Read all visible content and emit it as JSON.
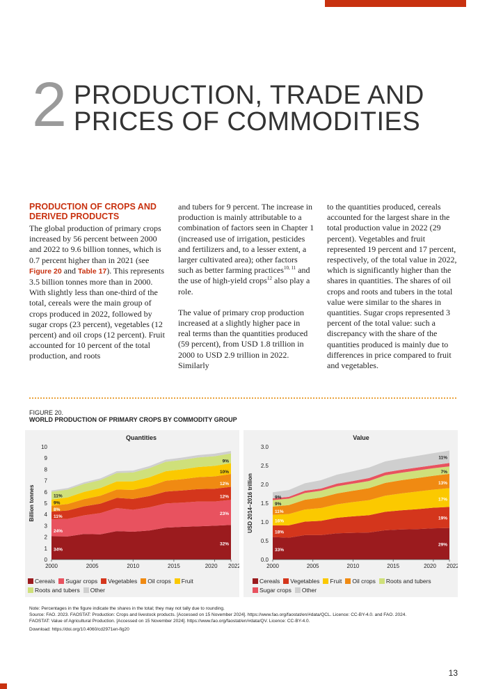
{
  "chapter": {
    "number": "2",
    "title_line1": "PRODUCTION, TRADE AND",
    "title_line2": "PRICES OF COMMODITIES"
  },
  "section": {
    "heading": "PRODUCTION OF CROPS AND DERIVED PRODUCTS"
  },
  "body": {
    "col1_p1_a": "The global production of primary crops increased by 56 percent between 2000 and 2022 to 9.6 billion tonnes, which is 0.7 percent higher than in 2021 (see ",
    "ref_figure": "Figure 20",
    "and_word": " and ",
    "ref_table": "Table 17",
    "col1_p1_b": "). This represents 3.5 billion tonnes more than in 2000. With slightly less than one-third of the total, cereals were the main group of crops produced in 2022, followed by sugar crops (23 percent), vegetables (12 percent) and oil crops (12 percent). Fruit accounted for 10 percent of the total production, and roots",
    "col2_p1_a": "and tubers for 9 percent. The increase in production is mainly attributable to a combination of factors seen in Chapter 1 (increased use of irrigation, pesticides and fertilizers and, to a lesser extent, a larger cultivated area); other factors such as better farming practices",
    "col2_sup1": "10, 11",
    "col2_p1_b": " and the use of high-yield crops",
    "col2_sup2": "12",
    "col2_p1_c": " also play a role.",
    "col2_p2": "The value of primary crop production increased at a slightly higher pace in real terms than the quantities produced (59 percent), from USD 1.8 trillion in 2000 to USD 2.9 trillion in 2022. Similarly",
    "col3_p1": "to the quantities produced, cereals accounted for the largest share in the total production value in 2022 (29 percent). Vegetables and fruit represented 19 percent and 17 percent, respectively, of the total value in 2022, which is significantly higher than the shares in quantities. The shares of oil crops and roots and tubers in the total value were similar to the shares in quantities. Sugar crops represented 3 percent of the total value: such a discrepancy with the share of the quantities produced is mainly due to differences in price compared to fruit and vegetables."
  },
  "figure": {
    "label": "FIGURE 20.",
    "title": "WORLD PRODUCTION OF PRIMARY CROPS BY COMMODITY GROUP"
  },
  "colors": {
    "Cereals": "#9b1b1e",
    "Sugar crops": "#e8525f",
    "Vegetables": "#d4361c",
    "Oil crops": "#f08a12",
    "Fruit": "#fbc900",
    "Roots and tubers": "#cfe07a",
    "Other": "#cfcfcf"
  },
  "chart_data": [
    {
      "type": "area",
      "title": "Quantities",
      "ylabel": "Billion tonnes",
      "xlim": [
        2000,
        2022
      ],
      "ylim": [
        0,
        10
      ],
      "yticks": [
        "0",
        "1",
        "2",
        "3",
        "4",
        "5",
        "6",
        "7",
        "8",
        "9",
        "10"
      ],
      "xticks": [
        "2000",
        "2005",
        "2010",
        "2015",
        "2020",
        "2022"
      ],
      "x": [
        2000,
        2002,
        2004,
        2006,
        2008,
        2010,
        2012,
        2014,
        2016,
        2018,
        2020,
        2022
      ],
      "series": [
        {
          "name": "Cereals",
          "values": [
            2.07,
            2.05,
            2.27,
            2.24,
            2.52,
            2.47,
            2.58,
            2.83,
            2.9,
            2.95,
            3.0,
            3.07
          ]
        },
        {
          "name": "Sugar crops",
          "values": [
            1.5,
            1.56,
            1.65,
            1.88,
            2.05,
            1.94,
            2.05,
            2.15,
            2.15,
            2.2,
            2.15,
            2.22
          ]
        },
        {
          "name": "Vegetables",
          "values": [
            0.68,
            0.74,
            0.8,
            0.84,
            0.9,
            0.97,
            1.0,
            1.05,
            1.08,
            1.1,
            1.13,
            1.16
          ]
        },
        {
          "name": "Oil crops",
          "values": [
            0.52,
            0.58,
            0.64,
            0.7,
            0.74,
            0.8,
            0.86,
            0.96,
            1.0,
            1.06,
            1.1,
            1.14
          ]
        },
        {
          "name": "Fruit",
          "values": [
            0.55,
            0.59,
            0.64,
            0.68,
            0.72,
            0.76,
            0.8,
            0.84,
            0.87,
            0.9,
            0.93,
            0.96
          ]
        },
        {
          "name": "Roots and tubers",
          "values": [
            0.69,
            0.69,
            0.71,
            0.71,
            0.75,
            0.78,
            0.82,
            0.84,
            0.84,
            0.85,
            0.86,
            0.86
          ]
        },
        {
          "name": "Other",
          "values": [
            0.12,
            0.13,
            0.14,
            0.15,
            0.16,
            0.17,
            0.18,
            0.19,
            0.2,
            0.21,
            0.22,
            0.22
          ]
        }
      ],
      "start_labels": [
        {
          "text": "34%",
          "y": 0.95
        },
        {
          "text": "24%",
          "y": 2.6
        },
        {
          "text": "11%",
          "y": 3.9
        },
        {
          "text": "8%",
          "y": 4.5
        },
        {
          "text": "9%",
          "y": 5.1
        },
        {
          "text": "11%",
          "y": 5.7
        }
      ],
      "end_labels": [
        {
          "text": "32%",
          "y": 1.45
        },
        {
          "text": "23%",
          "y": 4.15
        },
        {
          "text": "12%",
          "y": 5.65
        },
        {
          "text": "12%",
          "y": 6.8
        },
        {
          "text": "10%",
          "y": 7.85
        },
        {
          "text": "9%",
          "y": 8.8
        }
      ]
    },
    {
      "type": "area",
      "title": "Value",
      "ylabel": "USD 2014–2016 trillion",
      "xlim": [
        2000,
        2022
      ],
      "ylim": [
        0,
        3
      ],
      "yticks": [
        "0.0",
        "0.5",
        "1.0",
        "1.5",
        "2.0",
        "2.5",
        "3.0"
      ],
      "xticks": [
        "2000",
        "2005",
        "2010",
        "2015",
        "2020",
        "2022"
      ],
      "x": [
        2000,
        2002,
        2004,
        2006,
        2008,
        2010,
        2012,
        2014,
        2016,
        2018,
        2020,
        2022
      ],
      "series": [
        {
          "name": "Cereals",
          "values": [
            0.6,
            0.58,
            0.65,
            0.65,
            0.7,
            0.71,
            0.72,
            0.78,
            0.8,
            0.81,
            0.83,
            0.84
          ]
        },
        {
          "name": "Vegetables",
          "values": [
            0.31,
            0.33,
            0.36,
            0.38,
            0.41,
            0.44,
            0.46,
            0.49,
            0.51,
            0.53,
            0.55,
            0.56
          ]
        },
        {
          "name": "Fruit",
          "values": [
            0.28,
            0.3,
            0.32,
            0.34,
            0.36,
            0.38,
            0.4,
            0.43,
            0.45,
            0.47,
            0.48,
            0.5
          ]
        },
        {
          "name": "Oil crops",
          "values": [
            0.22,
            0.24,
            0.26,
            0.28,
            0.29,
            0.3,
            0.32,
            0.34,
            0.35,
            0.36,
            0.37,
            0.38
          ]
        },
        {
          "name": "Roots and tubers",
          "values": [
            0.17,
            0.17,
            0.18,
            0.18,
            0.19,
            0.19,
            0.19,
            0.2,
            0.2,
            0.2,
            0.2,
            0.2
          ]
        },
        {
          "name": "Sugar crops",
          "values": [
            0.05,
            0.05,
            0.06,
            0.06,
            0.07,
            0.07,
            0.08,
            0.08,
            0.08,
            0.08,
            0.08,
            0.09
          ]
        },
        {
          "name": "Other",
          "values": [
            0.16,
            0.18,
            0.2,
            0.22,
            0.24,
            0.26,
            0.28,
            0.29,
            0.3,
            0.31,
            0.32,
            0.33
          ]
        }
      ],
      "start_labels": [
        {
          "text": "33%",
          "y": 0.28
        },
        {
          "text": "18%",
          "y": 0.75
        },
        {
          "text": "16%",
          "y": 1.05
        },
        {
          "text": "11%",
          "y": 1.3
        },
        {
          "text": "9%",
          "y": 1.5
        },
        {
          "text": "9%",
          "y": 1.68
        }
      ],
      "end_labels": [
        {
          "text": "29%",
          "y": 0.42
        },
        {
          "text": "19%",
          "y": 1.12
        },
        {
          "text": "17%",
          "y": 1.62
        },
        {
          "text": "13%",
          "y": 2.06
        },
        {
          "text": "7%",
          "y": 2.35
        },
        {
          "text": "11%",
          "y": 2.73
        }
      ]
    }
  ],
  "legend_left": [
    "Cereals",
    "Sugar crops",
    "Vegetables",
    "Oil crops",
    "Fruit",
    "Roots and tubers",
    "Other"
  ],
  "legend_right": [
    "Cereals",
    "Vegetables",
    "Fruit",
    "Oil crops",
    "Roots and tubers",
    "Sugar crops",
    "Other"
  ],
  "notes": {
    "note": "Note: Percentages in the figure indicate the shares in the total; they may not tally due to rounding.",
    "source1": "Source: FAO. 2023. FAOSTAT: Production: Crops and livestock products. [Accessed on 15 November 2024]. https://www.fao.org/faostat/en/#data/QCL. Licence: CC-BY-4.0. and FAO. 2024.",
    "source2": "FAOSTAT: Value of Agricultural Production. [Accessed on 15 November 2024]. https://www.fao.org/faostat/en/#data/QV. Licence: CC-BY-4.0.",
    "download": "Download: https://doi.org/10.4060/cd2971en-fig20"
  },
  "page_number": "13"
}
